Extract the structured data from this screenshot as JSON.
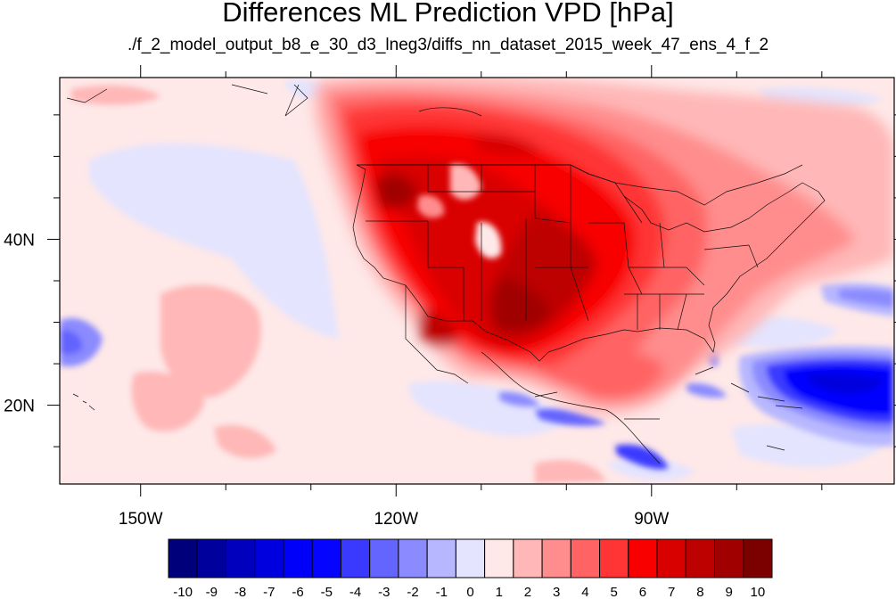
{
  "title": "Differences ML Prediction VPD [hPa]",
  "subtitle": "./f_2_model_output_b8_e_30_d3_lneg3/diffs_nn_dataset_2015_week_47_ens_4_f_2",
  "map": {
    "projection": "cylindrical equidistant",
    "lon_range": [
      -159.5,
      -61.5
    ],
    "lat_range": [
      10.5,
      59.5
    ],
    "lon_ticks": [
      {
        "value": -150,
        "label": "150W"
      },
      {
        "value": -120,
        "label": "120W"
      },
      {
        "value": -90,
        "label": "90W"
      }
    ],
    "lat_ticks": [
      {
        "value": 40,
        "label": "40N"
      },
      {
        "value": 20,
        "label": "20N"
      }
    ],
    "minor_lon_step": 10,
    "minor_lat_step": 5
  },
  "colorbar": {
    "labels": [
      "-10",
      "-9",
      "-8",
      "-7",
      "-6",
      "-5",
      "-4",
      "-3",
      "-2",
      "-1",
      "0",
      "1",
      "2",
      "3",
      "4",
      "5",
      "6",
      "7",
      "8",
      "9",
      "10"
    ],
    "colors": [
      "#00007a",
      "#00009c",
      "#0000bd",
      "#0000df",
      "#0000fa",
      "#0505ff",
      "#3a3aff",
      "#6464ff",
      "#8b8bff",
      "#b7b7ff",
      "#e4e4fe",
      "#fee8e8",
      "#ffb7b7",
      "#ff8d8d",
      "#ff6363",
      "#ff3535",
      "#f80000",
      "#d90000",
      "#bd0000",
      "#a00000",
      "#7b0000"
    ]
  }
}
